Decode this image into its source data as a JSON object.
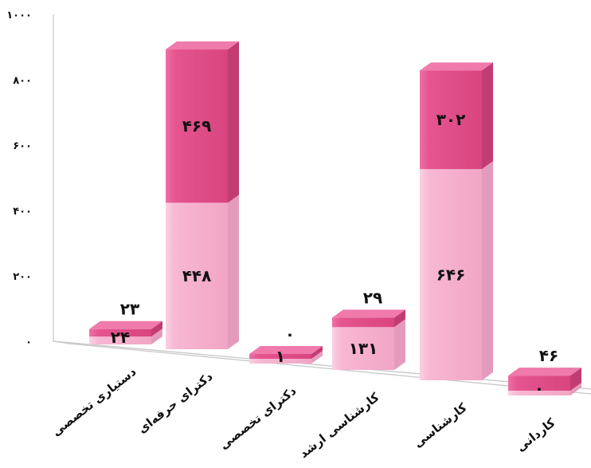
{
  "chart_data": {
    "type": "bar",
    "stacked": true,
    "style": "3d",
    "categories": [
      "دستیاری تخصصی",
      "دکترای حرفه‌ای",
      "دکترای تخصصی",
      "کارشناسی ارشد",
      "کارشناسی",
      "کاردانی"
    ],
    "series": [
      {
        "values": [
          24,
          448,
          1,
          131,
          646,
          0
        ],
        "value_labels": [
          "۲۴",
          "۴۴۸",
          "۱",
          "۱۳۱",
          "۶۴۶",
          "۰"
        ],
        "color": "#f5a8c8"
      },
      {
        "values": [
          23,
          469,
          0,
          29,
          302,
          46
        ],
        "value_labels": [
          "۲۳",
          "۴۶۹",
          "۰",
          "۲۹",
          "۳۰۲",
          "۴۶"
        ],
        "color": "#e0508a"
      }
    ],
    "ylim": [
      0,
      1000
    ],
    "y_ticks": [
      0,
      200,
      400,
      600,
      800,
      1000
    ],
    "y_tick_labels": [
      "۰",
      "۲۰۰",
      "۴۰۰",
      "۶۰۰",
      "۸۰۰",
      "۱۰۰۰"
    ],
    "grid": false,
    "legend": "none"
  }
}
